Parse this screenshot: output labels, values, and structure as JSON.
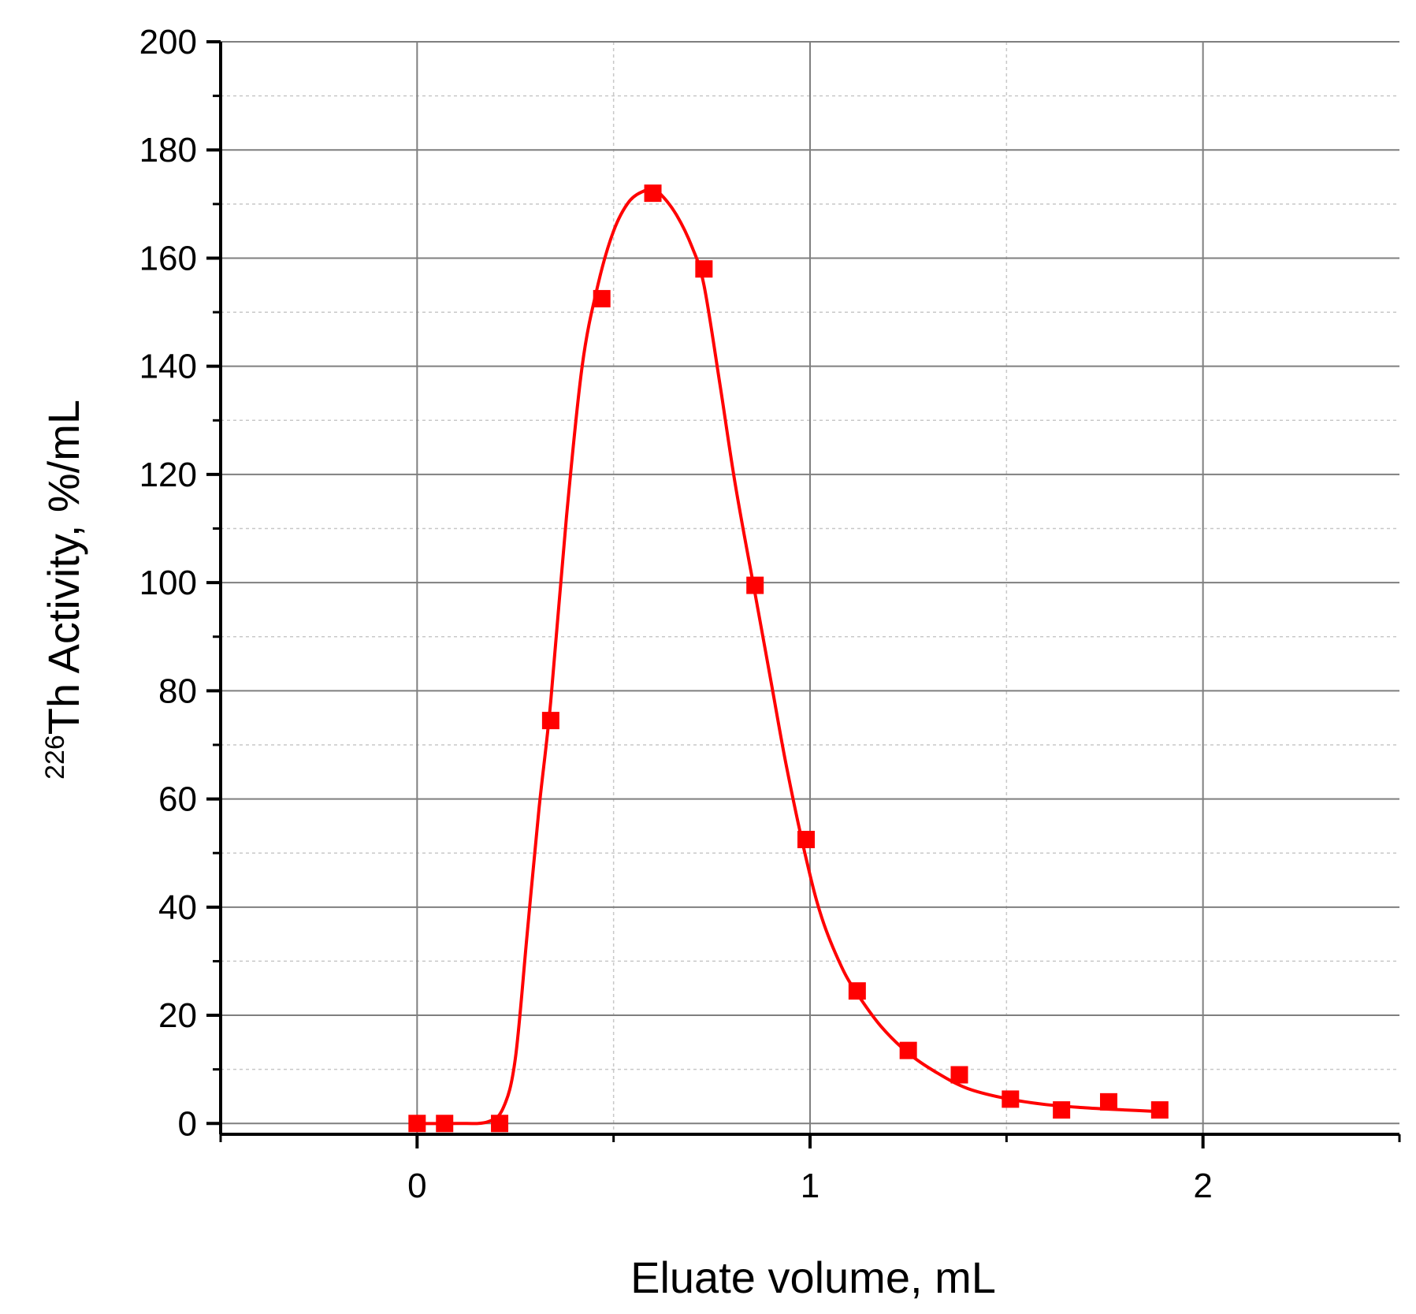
{
  "chart_data": {
    "type": "scatter",
    "xlabel": "Eluate volume, mL",
    "ylabel": {
      "superscript": "226",
      "text": "Th Activity, %/mL"
    },
    "xlim": [
      -0.5,
      2.5
    ],
    "ylim": [
      -2,
      200
    ],
    "x_ticks": [
      0,
      1,
      2
    ],
    "y_ticks": [
      0,
      20,
      40,
      60,
      80,
      100,
      120,
      140,
      160,
      180,
      200
    ],
    "grid": true,
    "legend": "none",
    "colors": {
      "series": "#ff0000",
      "axis": "#000000",
      "grid_major": "#7f7f7f",
      "grid_minor": "#c8c8c8"
    },
    "series": [
      {
        "marker": "square",
        "x": [
          0,
          0.07,
          0.21,
          0.34,
          0.47,
          0.6,
          0.73,
          0.86,
          0.99,
          1.12,
          1.25,
          1.38,
          1.51,
          1.64,
          1.76,
          1.89
        ],
        "y": [
          0,
          0,
          0,
          74.5,
          152.5,
          172,
          158,
          99.5,
          52.5,
          24.5,
          13.5,
          9,
          4.5,
          2.5,
          4,
          2.5
        ],
        "fit_curve": {
          "x": [
            0,
            0.1,
            0.18,
            0.22,
            0.25,
            0.28,
            0.31,
            0.34,
            0.38,
            0.42,
            0.46,
            0.5,
            0.54,
            0.58,
            0.6,
            0.62,
            0.66,
            0.7,
            0.73,
            0.77,
            0.81,
            0.86,
            0.9,
            0.94,
            0.99,
            1.03,
            1.08,
            1.12,
            1.18,
            1.25,
            1.32,
            1.4,
            1.5,
            1.6,
            1.7,
            1.8,
            1.89
          ],
          "y": [
            0,
            0,
            0.3,
            3,
            12,
            35,
            58,
            78,
            112,
            140,
            155,
            165,
            170.5,
            172.5,
            172.5,
            171.8,
            168,
            162,
            155,
            137,
            118,
            98,
            82,
            66,
            49,
            38,
            29,
            24,
            18,
            13,
            9.5,
            6.5,
            4.6,
            3.5,
            2.9,
            2.5,
            2.2
          ]
        }
      }
    ]
  }
}
